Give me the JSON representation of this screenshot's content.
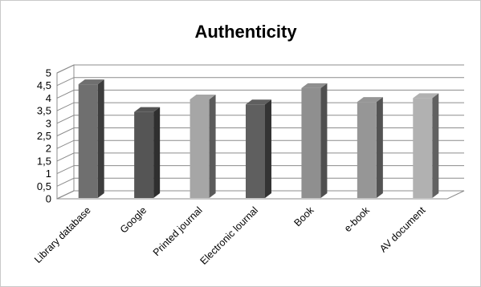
{
  "chart_data": {
    "type": "bar",
    "title": "Authenticity",
    "xlabel": "",
    "ylabel": "",
    "ylim": [
      0,
      5
    ],
    "y_ticks": [
      "0",
      "0,5",
      "1",
      "1,5",
      "2",
      "2,5",
      "3",
      "3,5",
      "4",
      "4,5",
      "5"
    ],
    "categories": [
      "Library database",
      "Google",
      "Printed journal",
      "Electronic lournal",
      "Book",
      "e-book",
      "AV document"
    ],
    "values": [
      4.55,
      3.45,
      3.95,
      3.75,
      4.4,
      3.85,
      4.0
    ],
    "colors": [
      "#6f6f6f",
      "#555555",
      "#a6a6a6",
      "#5f5f5f",
      "#8f8f8f",
      "#969696",
      "#b1b1b1"
    ],
    "grid": true,
    "legend": "none"
  }
}
